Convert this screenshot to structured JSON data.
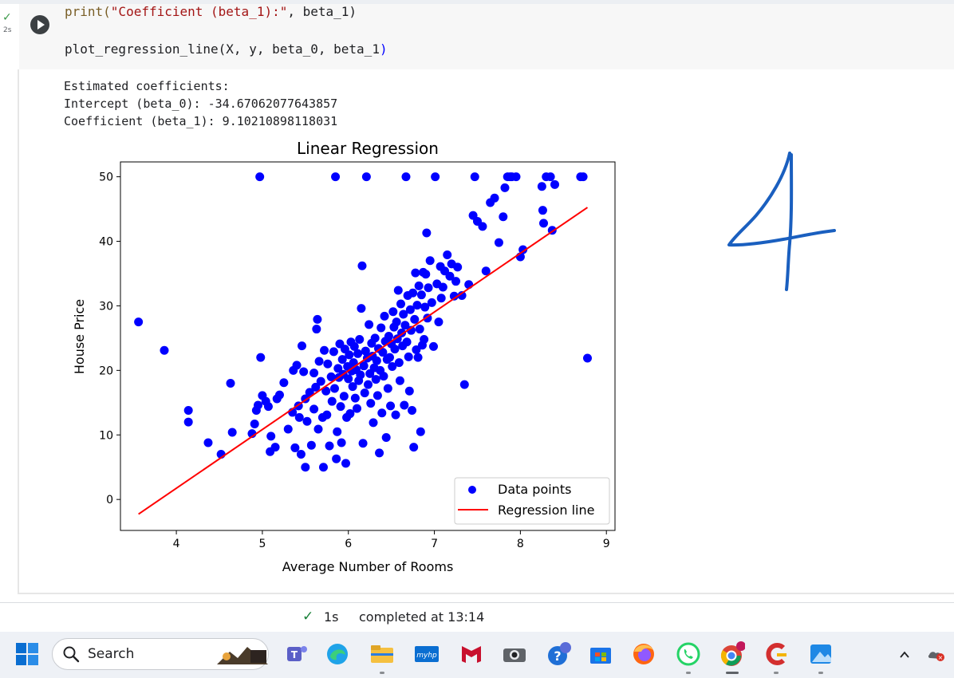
{
  "notebook": {
    "run_time": "2s",
    "code_lines": [
      {
        "fn": "print(",
        "str": "\"Coefficient (beta_1):\"",
        "rest": ", beta_1)"
      },
      {
        "fn": "plot_regression_line(X, y, beta_0, beta_1",
        "str": "",
        "rest": ")"
      }
    ],
    "output_lines": [
      "Estimated coefficients:",
      "Intercept (beta_0): -34.67062077643857",
      "Coefficient (beta_1): 9.10210898118031"
    ]
  },
  "status": {
    "check": "✓",
    "duration": "1s",
    "text": "completed at 13:14"
  },
  "handwriting": "4",
  "taskbar": {
    "search_label": "Search",
    "apps": [
      "widgets-icon",
      "teams-icon",
      "edge-icon",
      "file-explorer-icon",
      "myhp-icon",
      "mcafee-icon",
      "camera-icon",
      "help-icon",
      "store-icon",
      "firefox-icon",
      "whatsapp-icon",
      "chrome-icon",
      "ccleaner-icon",
      "photos-icon"
    ],
    "tray": [
      "chevron-up-icon",
      "onedrive-icon"
    ]
  },
  "chart_data": {
    "type": "scatter",
    "title": "Linear Regression",
    "xlabel": "Average Number of Rooms",
    "ylabel": "House Price",
    "xlim": [
      3.35,
      9.1
    ],
    "ylim": [
      -4.8,
      52.3
    ],
    "xticks": [
      4,
      5,
      6,
      7,
      8,
      9
    ],
    "yticks": [
      0,
      10,
      20,
      30,
      40,
      50
    ],
    "grid": false,
    "legend_position": "lower-right",
    "series": [
      {
        "name": "Data points",
        "color": "#0000ff",
        "points": [
          [
            3.56,
            27.5
          ],
          [
            3.86,
            23.1
          ],
          [
            4.14,
            13.8
          ],
          [
            4.14,
            12.0
          ],
          [
            4.37,
            8.8
          ],
          [
            4.52,
            7.0
          ],
          [
            4.63,
            18.0
          ],
          [
            4.65,
            10.4
          ],
          [
            4.88,
            10.2
          ],
          [
            4.91,
            11.7
          ],
          [
            4.93,
            13.8
          ],
          [
            4.95,
            14.6
          ],
          [
            4.97,
            50.0
          ],
          [
            4.98,
            22.0
          ],
          [
            5.0,
            16.1
          ],
          [
            5.04,
            15.2
          ],
          [
            5.07,
            14.4
          ],
          [
            5.09,
            7.4
          ],
          [
            5.1,
            9.8
          ],
          [
            5.15,
            8.1
          ],
          [
            5.17,
            15.6
          ],
          [
            5.2,
            16.2
          ],
          [
            5.25,
            18.1
          ],
          [
            5.3,
            10.9
          ],
          [
            5.35,
            13.5
          ],
          [
            5.36,
            20.0
          ],
          [
            5.38,
            8.0
          ],
          [
            5.4,
            20.8
          ],
          [
            5.42,
            14.5
          ],
          [
            5.43,
            12.7
          ],
          [
            5.45,
            7.0
          ],
          [
            5.46,
            23.8
          ],
          [
            5.48,
            19.8
          ],
          [
            5.5,
            5.0
          ],
          [
            5.5,
            15.6
          ],
          [
            5.52,
            12.1
          ],
          [
            5.55,
            16.6
          ],
          [
            5.57,
            8.4
          ],
          [
            5.6,
            19.6
          ],
          [
            5.6,
            14.0
          ],
          [
            5.62,
            17.4
          ],
          [
            5.63,
            26.4
          ],
          [
            5.64,
            27.9
          ],
          [
            5.65,
            10.9
          ],
          [
            5.66,
            21.4
          ],
          [
            5.68,
            18.3
          ],
          [
            5.7,
            12.7
          ],
          [
            5.71,
            5.0
          ],
          [
            5.72,
            23.1
          ],
          [
            5.74,
            16.8
          ],
          [
            5.75,
            13.1
          ],
          [
            5.76,
            21.0
          ],
          [
            5.78,
            8.3
          ],
          [
            5.8,
            19.0
          ],
          [
            5.81,
            15.2
          ],
          [
            5.83,
            22.9
          ],
          [
            5.84,
            17.2
          ],
          [
            5.85,
            50.0
          ],
          [
            5.86,
            6.3
          ],
          [
            5.87,
            10.5
          ],
          [
            5.88,
            20.3
          ],
          [
            5.89,
            18.9
          ],
          [
            5.9,
            24.1
          ],
          [
            5.91,
            14.4
          ],
          [
            5.92,
            8.8
          ],
          [
            5.93,
            21.7
          ],
          [
            5.94,
            19.4
          ],
          [
            5.95,
            16.0
          ],
          [
            5.96,
            23.3
          ],
          [
            5.97,
            5.6
          ],
          [
            5.98,
            12.7
          ],
          [
            5.99,
            20.6
          ],
          [
            6.0,
            18.7
          ],
          [
            6.01,
            22.4
          ],
          [
            6.02,
            13.3
          ],
          [
            6.03,
            24.4
          ],
          [
            6.04,
            19.9
          ],
          [
            6.05,
            17.5
          ],
          [
            6.06,
            21.2
          ],
          [
            6.07,
            23.7
          ],
          [
            6.08,
            15.7
          ],
          [
            6.09,
            20.1
          ],
          [
            6.1,
            14.1
          ],
          [
            6.11,
            22.6
          ],
          [
            6.12,
            18.4
          ],
          [
            6.13,
            24.8
          ],
          [
            6.14,
            19.3
          ],
          [
            6.15,
            29.6
          ],
          [
            6.16,
            36.2
          ],
          [
            6.17,
            8.7
          ],
          [
            6.18,
            20.7
          ],
          [
            6.19,
            16.5
          ],
          [
            6.2,
            23.0
          ],
          [
            6.21,
            50.0
          ],
          [
            6.22,
            21.9
          ],
          [
            6.23,
            17.8
          ],
          [
            6.24,
            27.1
          ],
          [
            6.25,
            19.5
          ],
          [
            6.26,
            14.9
          ],
          [
            6.27,
            24.2
          ],
          [
            6.28,
            22.2
          ],
          [
            6.29,
            11.9
          ],
          [
            6.3,
            20.4
          ],
          [
            6.31,
            25.0
          ],
          [
            6.32,
            18.6
          ],
          [
            6.33,
            21.5
          ],
          [
            6.34,
            16.1
          ],
          [
            6.35,
            23.4
          ],
          [
            6.36,
            7.2
          ],
          [
            6.37,
            20.0
          ],
          [
            6.38,
            26.6
          ],
          [
            6.39,
            13.4
          ],
          [
            6.4,
            22.8
          ],
          [
            6.41,
            19.1
          ],
          [
            6.42,
            28.4
          ],
          [
            6.43,
            24.5
          ],
          [
            6.44,
            9.6
          ],
          [
            6.45,
            21.7
          ],
          [
            6.46,
            17.2
          ],
          [
            6.47,
            25.3
          ],
          [
            6.48,
            22.0
          ],
          [
            6.49,
            14.5
          ],
          [
            6.5,
            24.1
          ],
          [
            6.51,
            20.6
          ],
          [
            6.52,
            29.1
          ],
          [
            6.53,
            26.7
          ],
          [
            6.54,
            23.3
          ],
          [
            6.55,
            13.1
          ],
          [
            6.56,
            27.5
          ],
          [
            6.57,
            24.9
          ],
          [
            6.58,
            32.4
          ],
          [
            6.59,
            21.2
          ],
          [
            6.6,
            18.4
          ],
          [
            6.61,
            30.3
          ],
          [
            6.62,
            25.8
          ],
          [
            6.63,
            23.8
          ],
          [
            6.64,
            28.7
          ],
          [
            6.65,
            14.6
          ],
          [
            6.66,
            27.0
          ],
          [
            6.67,
            50.0
          ],
          [
            6.68,
            24.4
          ],
          [
            6.69,
            31.6
          ],
          [
            6.7,
            22.1
          ],
          [
            6.71,
            16.8
          ],
          [
            6.72,
            29.4
          ],
          [
            6.73,
            26.2
          ],
          [
            6.74,
            13.8
          ],
          [
            6.75,
            32.0
          ],
          [
            6.76,
            8.1
          ],
          [
            6.77,
            27.9
          ],
          [
            6.78,
            35.1
          ],
          [
            6.79,
            23.2
          ],
          [
            6.8,
            30.1
          ],
          [
            6.81,
            22.0
          ],
          [
            6.82,
            33.1
          ],
          [
            6.83,
            26.4
          ],
          [
            6.84,
            10.5
          ],
          [
            6.85,
            31.7
          ],
          [
            6.86,
            23.9
          ],
          [
            6.87,
            35.2
          ],
          [
            6.88,
            24.8
          ],
          [
            6.89,
            29.8
          ],
          [
            6.9,
            34.9
          ],
          [
            6.91,
            41.3
          ],
          [
            6.92,
            28.1
          ],
          [
            6.93,
            32.8
          ],
          [
            6.95,
            37.0
          ],
          [
            6.97,
            30.5
          ],
          [
            6.99,
            23.7
          ],
          [
            7.01,
            50.0
          ],
          [
            7.03,
            33.4
          ],
          [
            7.05,
            27.5
          ],
          [
            7.07,
            36.1
          ],
          [
            7.08,
            31.2
          ],
          [
            7.1,
            32.9
          ],
          [
            7.12,
            35.4
          ],
          [
            7.15,
            37.9
          ],
          [
            7.18,
            34.6
          ],
          [
            7.2,
            36.5
          ],
          [
            7.23,
            31.5
          ],
          [
            7.25,
            33.8
          ],
          [
            7.27,
            36.0
          ],
          [
            7.32,
            31.6
          ],
          [
            7.35,
            17.8
          ],
          [
            7.4,
            33.3
          ],
          [
            7.45,
            44.0
          ],
          [
            7.47,
            50.0
          ],
          [
            7.5,
            43.1
          ],
          [
            7.56,
            42.3
          ],
          [
            7.6,
            35.4
          ],
          [
            7.65,
            46.0
          ],
          [
            7.7,
            46.7
          ],
          [
            7.75,
            39.8
          ],
          [
            7.8,
            43.8
          ],
          [
            7.82,
            48.3
          ],
          [
            7.85,
            50.0
          ],
          [
            7.88,
            50.0
          ],
          [
            7.9,
            50.0
          ],
          [
            7.95,
            50.0
          ],
          [
            8.0,
            37.6
          ],
          [
            8.03,
            38.7
          ],
          [
            8.25,
            48.5
          ],
          [
            8.26,
            44.8
          ],
          [
            8.27,
            42.8
          ],
          [
            8.3,
            50.0
          ],
          [
            8.35,
            50.0
          ],
          [
            8.37,
            41.7
          ],
          [
            8.4,
            48.8
          ],
          [
            8.7,
            50.0
          ],
          [
            8.73,
            50.0
          ],
          [
            8.78,
            21.9
          ]
        ]
      },
      {
        "name": "Regression line",
        "color": "#ff0000",
        "line": [
          [
            3.56,
            -2.27
          ],
          [
            8.78,
            45.25
          ]
        ]
      }
    ]
  }
}
